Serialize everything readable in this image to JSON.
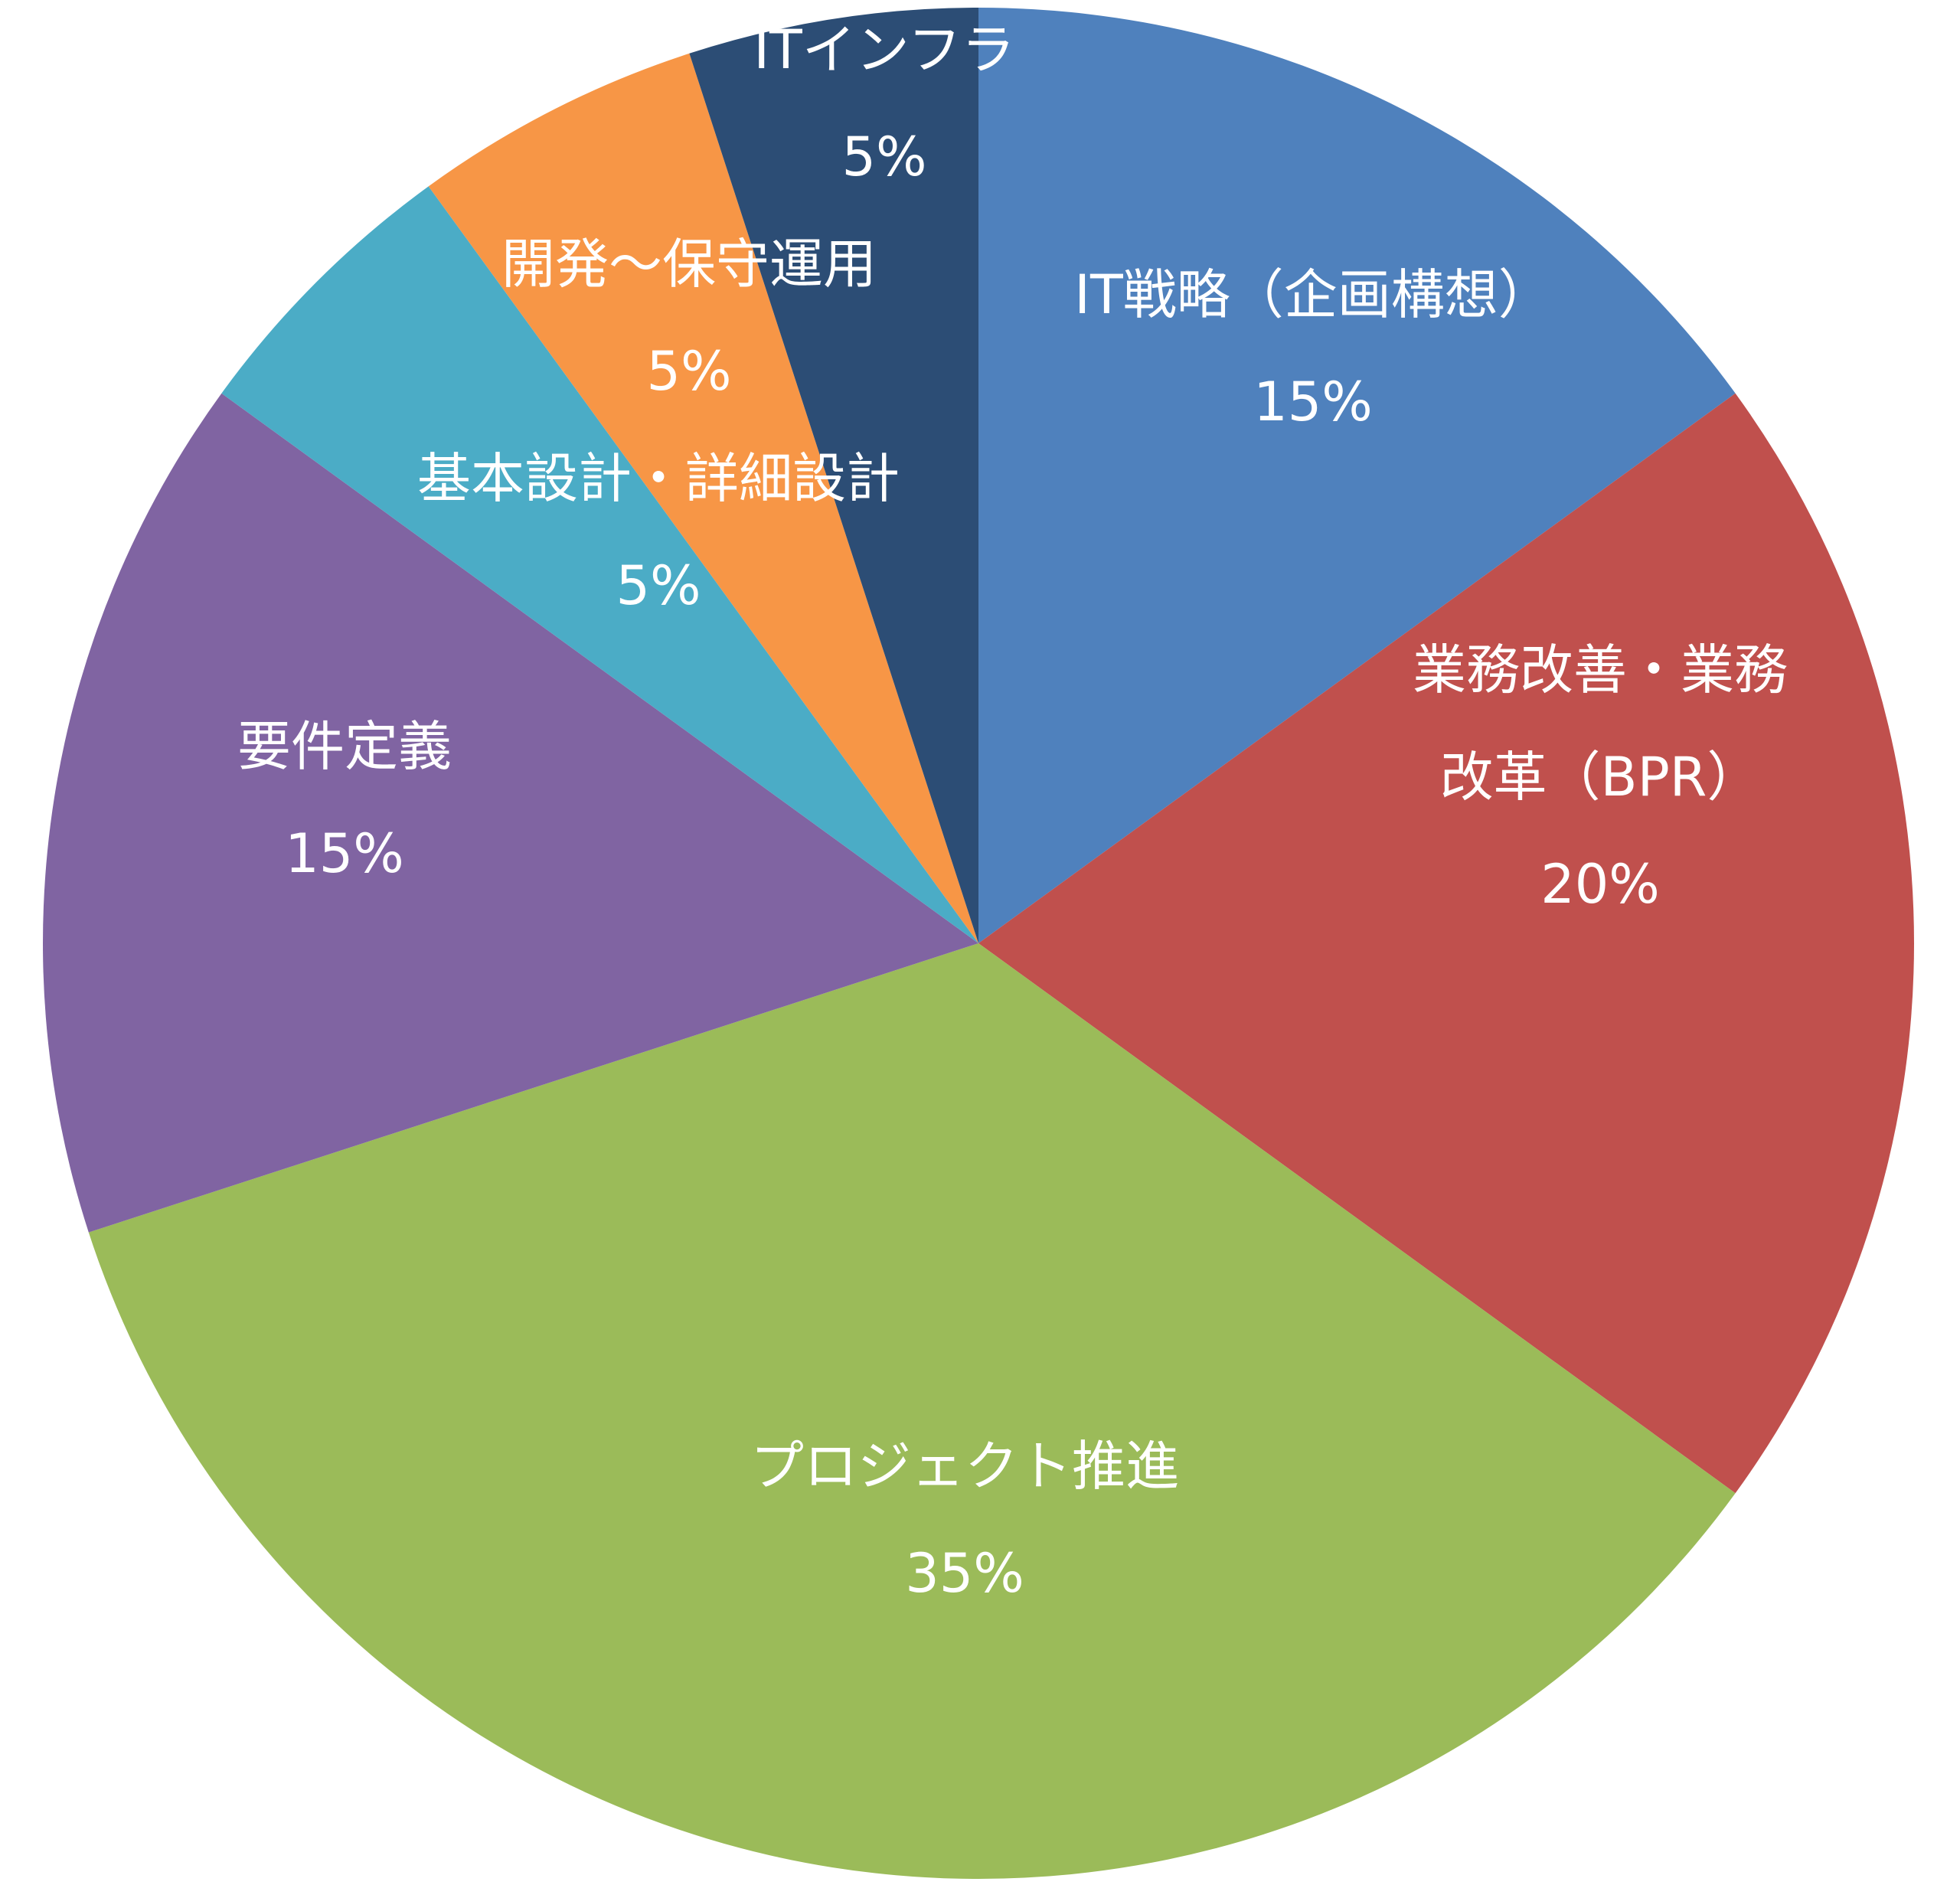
{
  "chart_data": {
    "type": "pie",
    "categories": [
      "IT戦略（企画構想）",
      "業務改善・業務改革（BPR）",
      "プロジェクト推進",
      "要件定義",
      "基本設計・詳細設計",
      "開発〜保守運用",
      "ITインフラ"
    ],
    "values": [
      15,
      20,
      35,
      15,
      5,
      5,
      5
    ],
    "unit": "%",
    "slices": [
      {
        "label_lines": [
          "IT戦略（企画構想）"
        ],
        "value_text": "15%",
        "color": "#4F81BD"
      },
      {
        "label_lines": [
          "業務改善・業務",
          "改革（BPR）"
        ],
        "value_text": "20%",
        "color": "#C0504D"
      },
      {
        "label_lines": [
          "プロジェクト推進"
        ],
        "value_text": "35%",
        "color": "#9BBB59"
      },
      {
        "label_lines": [
          "要件定義"
        ],
        "value_text": "15%",
        "color": "#8064A2"
      },
      {
        "label_lines": [
          "基本設計・詳細設計"
        ],
        "value_text": "5%",
        "color": "#4BACC6"
      },
      {
        "label_lines": [
          "開発〜保守運用"
        ],
        "value_text": "5%",
        "color": "#F79646"
      },
      {
        "label_lines": [
          "ITインフラ"
        ],
        "value_text": "5%",
        "color": "#2C4D75"
      }
    ],
    "start_angle_deg": 0,
    "direction": "clockwise",
    "legend": "none",
    "title": ""
  }
}
